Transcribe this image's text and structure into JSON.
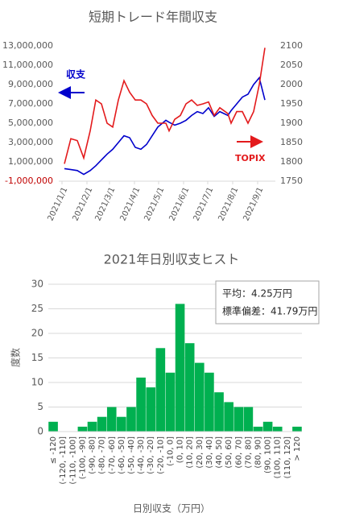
{
  "chart_data": [
    {
      "type": "line",
      "title": "短期トレード年間収支",
      "x": [
        "2021/1/4",
        "2021/1/12",
        "2021/1/20",
        "2021/1/28",
        "2021/2/5",
        "2021/2/12",
        "2021/2/19",
        "2021/2/26",
        "2021/3/5",
        "2021/3/12",
        "2021/3/19",
        "2021/3/26",
        "2021/4/2",
        "2021/4/9",
        "2021/4/16",
        "2021/4/23",
        "2021/4/30",
        "2021/5/10",
        "2021/5/14",
        "2021/5/21",
        "2021/5/28",
        "2021/6/4",
        "2021/6/11",
        "2021/6/18",
        "2021/6/25",
        "2021/7/2",
        "2021/7/9",
        "2021/7/16",
        "2021/7/26",
        "2021/7/30",
        "2021/8/6",
        "2021/8/13",
        "2021/8/20",
        "2021/8/27",
        "2021/9/3",
        "2021/9/10"
      ],
      "series": [
        {
          "name": "収支",
          "color": "#0000cc",
          "values": [
            300000,
            200000,
            100000,
            -300000,
            100000,
            600000,
            1200000,
            1800000,
            2300000,
            3000000,
            3700000,
            3500000,
            2500000,
            2300000,
            2800000,
            3700000,
            4600000,
            5300000,
            5100000,
            4800000,
            5000000,
            5300000,
            5800000,
            6200000,
            6000000,
            6600000,
            5700000,
            6200000,
            5800000,
            6300000,
            7000000,
            7700000,
            8000000,
            9000000,
            9700000,
            7400000
          ]
        },
        {
          "name": "TOPIX",
          "color": "#e31a1c",
          "axis": "y2",
          "values": [
            1795,
            1860,
            1855,
            1810,
            1880,
            1960,
            1950,
            1900,
            1890,
            1960,
            2010,
            1980,
            1960,
            1960,
            1950,
            1920,
            1900,
            1900,
            1880,
            1910,
            1920,
            1950,
            1960,
            1946,
            1950,
            1955,
            1920,
            1940,
            1925,
            1900,
            1930,
            1930,
            1900,
            1930,
            2000,
            2095
          ]
        }
      ],
      "annotations": [
        "収支",
        "TOPIX"
      ],
      "ylim": [
        -1000000,
        13000000
      ],
      "yticks": [
        {
          "value": -1000000,
          "label": "-1,000,000"
        },
        {
          "value": 1000000,
          "label": "1,000,000"
        },
        {
          "value": 3000000,
          "label": "3,000,000"
        },
        {
          "value": 5000000,
          "label": "5,000,000"
        },
        {
          "value": 7000000,
          "label": "7,000,000"
        },
        {
          "value": 9000000,
          "label": "9,000,000"
        },
        {
          "value": 11000000,
          "label": "11,000,000"
        },
        {
          "value": 13000000,
          "label": "13,000,000"
        }
      ],
      "y2lim": [
        1750,
        2100
      ],
      "y2ticks": [
        1750,
        1800,
        1850,
        1900,
        1950,
        2000,
        2050,
        2100
      ],
      "xticks": [
        "2021/1/1",
        "2021/2/1",
        "2021/3/1",
        "2021/4/1",
        "2021/5/1",
        "2021/6/1",
        "2021/7/1",
        "2021/8/1",
        "2021/9/1"
      ],
      "grid": false
    },
    {
      "type": "bar",
      "title": "2021年日別収支ヒスト",
      "ylabel": "度数",
      "xlabel": "日別収支（万円）",
      "categories": [
        "≤ -120",
        "(-120, -110]",
        "(-110, -100]",
        "(-100, -90]",
        "(-90, -80]",
        "(-80, -70]",
        "(-70, -60]",
        "(-60, -50]",
        "(-50, -40]",
        "(-40, -30]",
        "(-30, -20]",
        "(-20, -10]",
        "(-10, 0]",
        "(0, 10]",
        "(10, 20]",
        "(20, 30]",
        "(30, 40]",
        "(40, 50]",
        "(50, 60]",
        "(60, 70]",
        "(70, 80]",
        "(80, 90]",
        "(90, 100]",
        "(100, 110]",
        "(110, 120]",
        "> 120"
      ],
      "values": [
        2,
        0,
        0,
        1,
        2,
        3,
        5,
        3,
        5,
        11,
        9,
        17,
        12,
        26,
        18,
        14,
        12,
        8,
        6,
        5,
        5,
        1,
        2,
        1,
        0,
        1
      ],
      "color": "#00b050",
      "annotations": [
        "平均：4.25万円",
        "標準偏差：41.79万円"
      ],
      "ylim": [
        0,
        30
      ],
      "yticks": [
        0,
        5,
        10,
        15,
        20,
        25,
        30
      ],
      "grid": true
    }
  ]
}
